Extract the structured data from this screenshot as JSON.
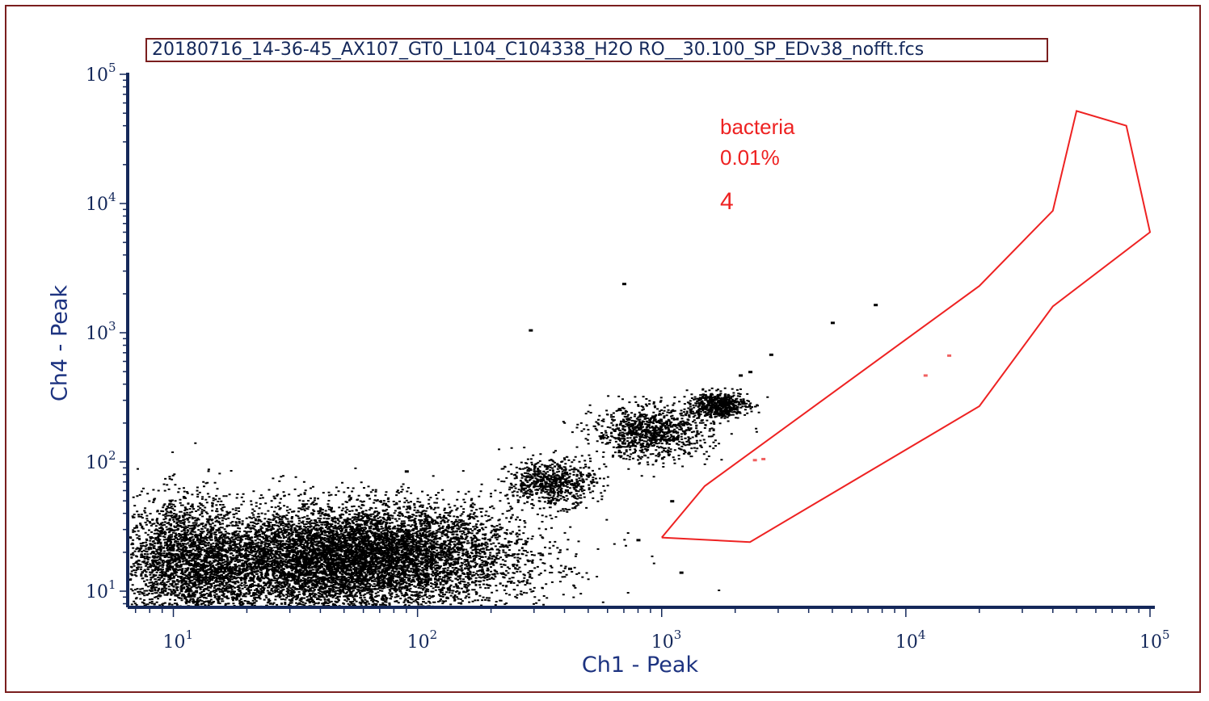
{
  "chart_data": {
    "type": "scatter",
    "title": "20180716_14-36-45_AX107_GT0_L104_C104338_H2O RO__30.100_SP_EDv38_nofft.fcs",
    "xlabel": "Ch1 - Peak",
    "ylabel": "Ch4 - Peak",
    "x_scale": "log",
    "y_scale": "log",
    "xlim": [
      6.5,
      100000
    ],
    "ylim": [
      7.5,
      100000
    ],
    "x_ticks": [
      {
        "value": 10,
        "base": "10",
        "exp": "1"
      },
      {
        "value": 100,
        "base": "10",
        "exp": "2"
      },
      {
        "value": 1000,
        "base": "10",
        "exp": "3"
      },
      {
        "value": 10000,
        "base": "10",
        "exp": "4"
      },
      {
        "value": 100000,
        "base": "10",
        "exp": "5"
      }
    ],
    "y_ticks": [
      {
        "value": 10,
        "base": "10",
        "exp": "1"
      },
      {
        "value": 100,
        "base": "10",
        "exp": "2"
      },
      {
        "value": 1000,
        "base": "10",
        "exp": "3"
      },
      {
        "value": 10000,
        "base": "10",
        "exp": "4"
      },
      {
        "value": 100000,
        "base": "10",
        "exp": "5"
      }
    ],
    "grid": false,
    "point_color": "#000000",
    "populations": [
      {
        "center": [
          40,
          16
        ],
        "spread": [
          0.38,
          0.21
        ],
        "count": 9000
      },
      {
        "center": [
          70,
          22
        ],
        "spread": [
          0.28,
          0.18
        ],
        "count": 3000
      },
      {
        "center": [
          11,
          18
        ],
        "spread": [
          0.12,
          0.25
        ],
        "count": 1800
      },
      {
        "center": [
          350,
          70
        ],
        "spread": [
          0.09,
          0.09
        ],
        "count": 700
      },
      {
        "center": [
          900,
          170
        ],
        "spread": [
          0.12,
          0.1
        ],
        "count": 1000
      },
      {
        "center": [
          1700,
          280
        ],
        "spread": [
          0.06,
          0.05
        ],
        "count": 600
      }
    ],
    "outliers": [
      [
        700,
        2400
      ],
      [
        290,
        1050
      ],
      [
        7500,
        1650
      ],
      [
        5000,
        1200
      ],
      [
        2800,
        680
      ],
      [
        2300,
        500
      ],
      [
        2100,
        470
      ],
      [
        700,
        140
      ],
      [
        1100,
        50
      ],
      [
        800,
        25
      ],
      [
        90,
        85
      ],
      [
        420,
        15
      ],
      [
        1200,
        14
      ]
    ],
    "gate": {
      "name": "bacteria",
      "percent": "0.01%",
      "count": "4",
      "color": "#ee2222",
      "polygon": [
        [
          1000,
          26
        ],
        [
          1500,
          65
        ],
        [
          20000,
          2300
        ],
        [
          40000,
          8800
        ],
        [
          50000,
          52000
        ],
        [
          80000,
          40000
        ],
        [
          100000,
          6000
        ],
        [
          40000,
          1600
        ],
        [
          20000,
          270
        ],
        [
          2300,
          24
        ],
        [
          1000,
          26
        ]
      ],
      "events": [
        [
          2400,
          104
        ],
        [
          2600,
          106
        ],
        [
          12000,
          470
        ],
        [
          15000,
          670
        ]
      ]
    }
  }
}
